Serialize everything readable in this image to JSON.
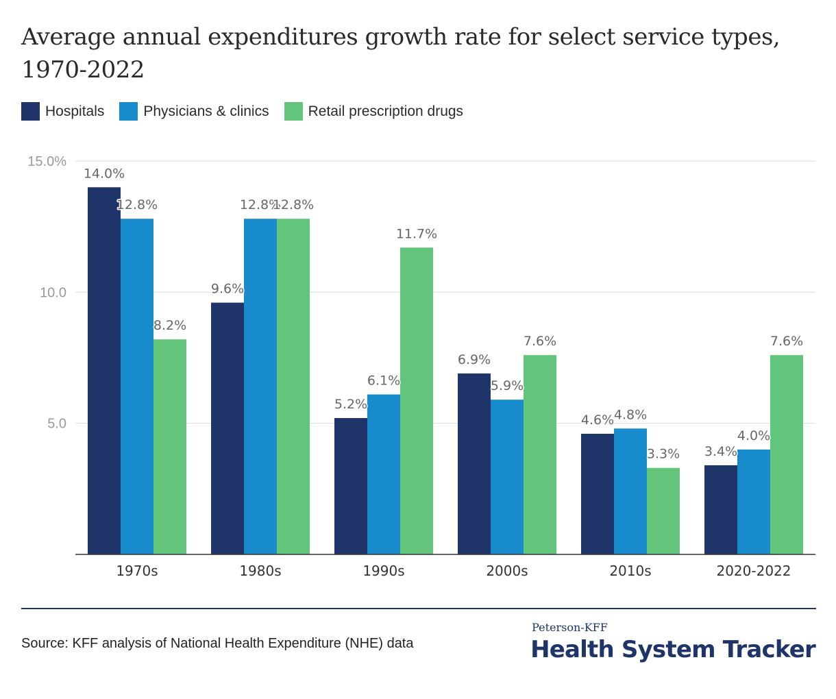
{
  "title": "Average annual expenditures growth rate for select service types, 1970-2022",
  "source": "Source: KFF analysis of National Health Expenditure (NHE) data",
  "brand": {
    "top": "Peterson-KFF",
    "main": "Health System Tracker"
  },
  "colors": {
    "hospitals": "#1f3468",
    "physicians": "#188bcc",
    "drugs": "#63c57b",
    "brand": "#1f3468",
    "axis_text": "#999999",
    "label_text": "#666666",
    "gridline": "#dddddd"
  },
  "chart_data": {
    "type": "bar",
    "title": "Average annual expenditures growth rate for select service types, 1970-2022",
    "xlabel": "",
    "ylabel": "",
    "ylim": [
      0,
      15
    ],
    "yticks": [
      {
        "value": 5,
        "label": "5.0"
      },
      {
        "value": 10,
        "label": "10.0"
      },
      {
        "value": 15,
        "label": "15.0%"
      }
    ],
    "grid": true,
    "legend_position": "top-left",
    "categories": [
      "1970s",
      "1980s",
      "1990s",
      "2000s",
      "2010s",
      "2020-2022"
    ],
    "series": [
      {
        "name": "Hospitals",
        "color_key": "hospitals",
        "values": [
          14.0,
          9.6,
          5.2,
          6.9,
          4.6,
          3.4
        ],
        "labels": [
          "14.0%",
          "9.6%",
          "5.2%",
          "6.9%",
          "4.6%",
          "3.4%"
        ]
      },
      {
        "name": "Physicians & clinics",
        "color_key": "physicians",
        "values": [
          12.8,
          12.8,
          6.1,
          5.9,
          4.8,
          4.0
        ],
        "labels": [
          "12.8%",
          "12.8%",
          "6.1%",
          "5.9%",
          "4.8%",
          "4.0%"
        ]
      },
      {
        "name": "Retail prescription drugs",
        "color_key": "drugs",
        "values": [
          8.2,
          12.8,
          11.7,
          7.6,
          3.3,
          7.6
        ],
        "labels": [
          "8.2%",
          "12.8%",
          "11.7%",
          "7.6%",
          "3.3%",
          "7.6%"
        ]
      }
    ]
  }
}
